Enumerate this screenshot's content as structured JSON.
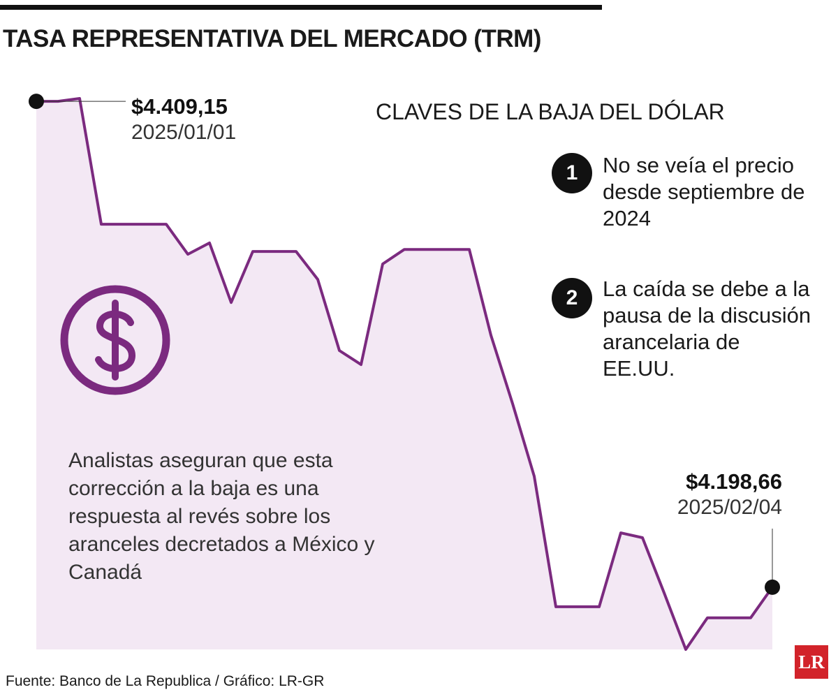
{
  "chart_data": {
    "type": "area",
    "title": "TASA REPRESENTATIVA DEL MERCADO (TRM)",
    "categories": [
      "2025/01/01",
      null,
      null,
      null,
      null,
      null,
      null,
      null,
      null,
      null,
      null,
      null,
      null,
      null,
      null,
      null,
      null,
      null,
      null,
      null,
      null,
      null,
      null,
      null,
      null,
      null,
      null,
      null,
      null,
      null,
      null,
      null,
      null,
      null,
      "2025/02/04"
    ],
    "values": [
      4409.15,
      4409.15,
      4410.4,
      4355.9,
      4355.9,
      4355.9,
      4355.9,
      4342.9,
      4347.8,
      4322.0,
      4344.1,
      4344.1,
      4344.1,
      4332.0,
      4301.2,
      4295.1,
      4338.7,
      4345.0,
      4345.0,
      4345.0,
      4345.0,
      4307.8,
      4278.2,
      4246.7,
      4190.2,
      4190.2,
      4190.2,
      4222.2,
      4220.1,
      4196.2,
      4171.7,
      4185.4,
      4185.4,
      4185.4,
      4198.66
    ],
    "value_labels": [
      "$4.409,15",
      null,
      null,
      null,
      null,
      null,
      null,
      null,
      null,
      null,
      null,
      null,
      null,
      null,
      null,
      null,
      null,
      null,
      null,
      null,
      null,
      null,
      null,
      null,
      null,
      null,
      null,
      null,
      null,
      null,
      null,
      null,
      null,
      null,
      "$4.198,66"
    ],
    "color": "#7b2a7f",
    "fill": "#f3e8f4",
    "annotation": "Analistas aseguran que esta corrección a la baja es una respuesta al revés sobre los aranceles decretados a México y Canadá"
  },
  "keys": {
    "title": "CLAVES DE LA BAJA DEL DÓLAR",
    "items": [
      {
        "number": "1",
        "text": "No se veía el precio desde septiembre de 2024"
      },
      {
        "number": "2",
        "text": "La caída se debe a la pausa de la discusión arancelaria de EE.UU."
      }
    ]
  },
  "footer": {
    "source": "Fuente: Banco de La Republica / Gráfico: LR-GR",
    "logo": "LR"
  }
}
